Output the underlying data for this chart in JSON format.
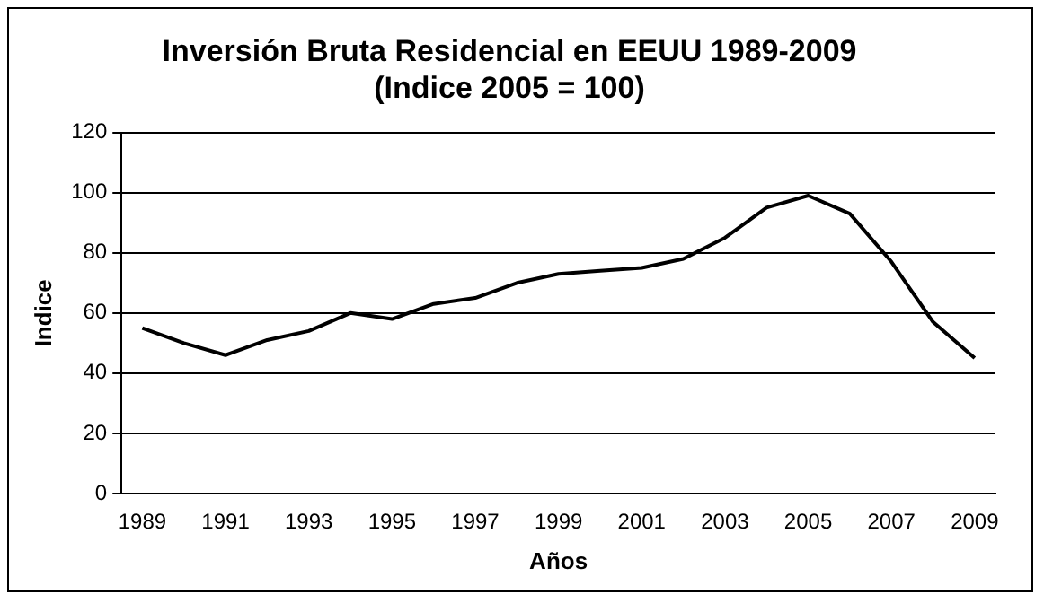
{
  "chart_data": {
    "type": "line",
    "title": [
      "Inversión Bruta Residencial en EEUU 1989-2009",
      "(Indice 2005 = 100)"
    ],
    "xlabel": "Años",
    "ylabel": "Indice",
    "categories": [
      "1989",
      null,
      "1991",
      null,
      "1993",
      null,
      "1995",
      null,
      "1997",
      null,
      "1999",
      null,
      "2001",
      null,
      "2003",
      null,
      "2005",
      null,
      "2007",
      null,
      "2009"
    ],
    "series": [
      {
        "color": "#000000",
        "values": [
          55,
          50,
          46,
          51,
          54,
          60,
          58,
          63,
          65,
          70,
          73,
          74,
          75,
          78,
          85,
          95,
          99,
          93,
          77,
          57,
          45
        ]
      }
    ],
    "ylim": [
      0,
      120
    ],
    "yticks": [
      0,
      20,
      40,
      60,
      80,
      100,
      120
    ],
    "grid": "y",
    "legend": false,
    "marker": "none",
    "line_style": "solid"
  }
}
